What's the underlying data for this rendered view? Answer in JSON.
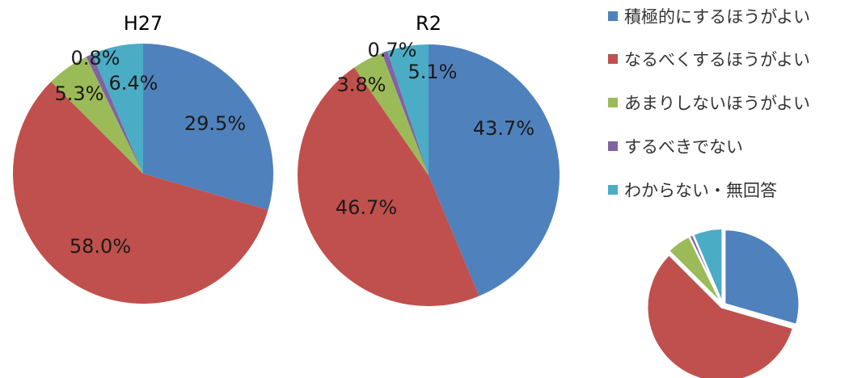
{
  "chart_data": [
    {
      "type": "pie",
      "title": "H27",
      "categories": [
        "積極的にするほうがよい",
        "なるべくするほうがよい",
        "あまりしないほうがよい",
        "するべきでない",
        "わからない・無回答"
      ],
      "values": [
        29.5,
        58.0,
        5.3,
        0.8,
        6.4
      ],
      "labels": [
        "29.5%",
        "58.0%",
        "5.3%",
        "0.8%",
        "6.4%"
      ]
    },
    {
      "type": "pie",
      "title": "R2",
      "categories": [
        "積極的にするほうがよい",
        "なるべくするほうがよい",
        "あまりしないほうがよい",
        "するべきでない",
        "わからない・無回答"
      ],
      "values": [
        43.7,
        46.7,
        3.8,
        0.7,
        5.1
      ],
      "labels": [
        "43.7%",
        "46.7%",
        "3.8%",
        "0.7%",
        "5.1%"
      ]
    },
    {
      "type": "pie",
      "title": "",
      "categories": [
        "積極的にするほうがよい",
        "なるべくするほうがよい",
        "あまりしないほうがよい",
        "するべきでない",
        "わからない・無回答"
      ],
      "values": [
        29.5,
        58.0,
        5.3,
        0.8,
        6.4
      ],
      "labels": []
    }
  ],
  "legend": {
    "position": "right",
    "items": [
      {
        "label": "積極的にするほうがよい",
        "color": "#4F81BD"
      },
      {
        "label": "なるべくするほうがよい",
        "color": "#C0504D"
      },
      {
        "label": "あまりしないほうがよい",
        "color": "#9BBB59"
      },
      {
        "label": "するべきでない",
        "color": "#8064A2"
      },
      {
        "label": "わからない・無回答",
        "color": "#4BACC6"
      }
    ]
  },
  "colors": [
    "#4F81BD",
    "#C0504D",
    "#9BBB59",
    "#8064A2",
    "#4BACC6"
  ]
}
